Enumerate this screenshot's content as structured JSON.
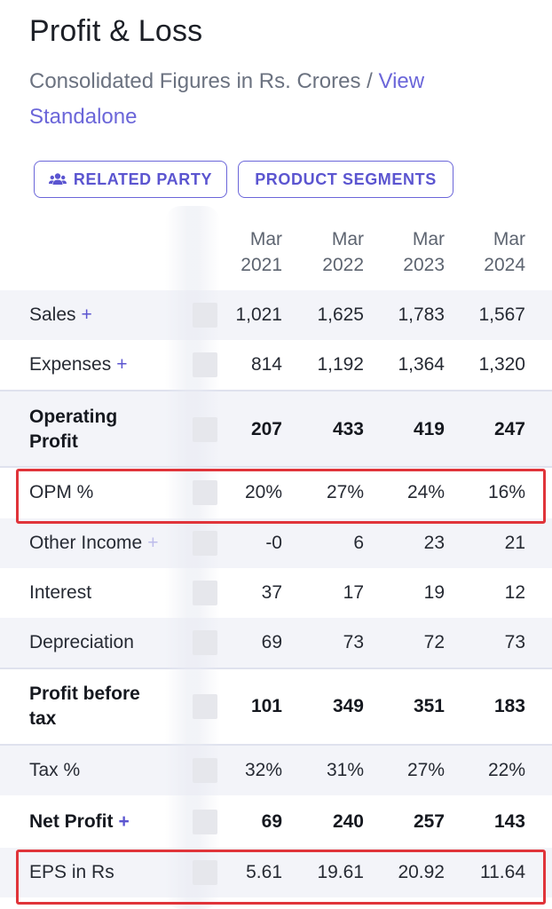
{
  "header": {
    "title": "Profit & Loss",
    "subtitle_text": "Consolidated Figures in Rs. Crores / ",
    "subtitle_link": "View Standalone"
  },
  "buttons": {
    "related_party": "RELATED PARTY",
    "product_segments": "PRODUCT SEGMENTS"
  },
  "columns": [
    {
      "month": "Mar",
      "year": "2021"
    },
    {
      "month": "Mar",
      "year": "2022"
    },
    {
      "month": "Mar",
      "year": "2023"
    },
    {
      "month": "Mar",
      "year": "2024"
    }
  ],
  "rows": [
    {
      "label": "Sales",
      "plus": "+",
      "values": [
        "1,021",
        "1,625",
        "1,783",
        "1,567"
      ]
    },
    {
      "label": "Expenses",
      "plus": "+",
      "values": [
        "814",
        "1,192",
        "1,364",
        "1,320"
      ]
    },
    {
      "label_line1": "Operating",
      "label_line2": "Profit",
      "values": [
        "207",
        "433",
        "419",
        "247"
      ]
    },
    {
      "label": "OPM %",
      "values": [
        "20%",
        "27%",
        "24%",
        "16%"
      ]
    },
    {
      "label": "Other Income",
      "plus": "+",
      "values": [
        "-0",
        "6",
        "23",
        "21"
      ]
    },
    {
      "label": "Interest",
      "values": [
        "37",
        "17",
        "19",
        "12"
      ]
    },
    {
      "label": "Depreciation",
      "values": [
        "69",
        "73",
        "72",
        "73"
      ]
    },
    {
      "label_line1": "Profit before",
      "label_line2": "tax",
      "values": [
        "101",
        "349",
        "351",
        "183"
      ]
    },
    {
      "label": "Tax %",
      "values": [
        "32%",
        "31%",
        "27%",
        "22%"
      ]
    },
    {
      "label": "Net Profit",
      "plus": "+",
      "values": [
        "69",
        "240",
        "257",
        "143"
      ]
    },
    {
      "label": "EPS in Rs",
      "values": [
        "5.61",
        "19.61",
        "20.92",
        "11.64"
      ]
    }
  ],
  "colors": {
    "accent": "#5b55d0",
    "highlight": "#e0343a",
    "stripe": "#f3f4f9"
  }
}
